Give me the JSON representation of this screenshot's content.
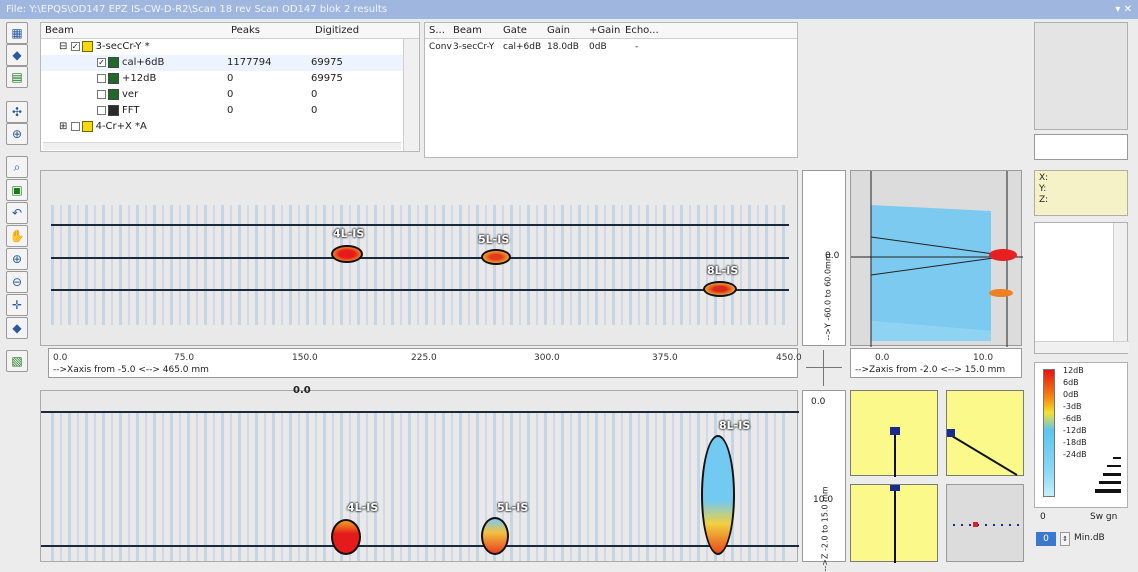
{
  "title": "File: Y:\\EPQS\\OD147 EPZ IS-CW-D-R2\\Scan 18 rev Scan OD147 blok 2 results",
  "window_controls": "▾ ✕",
  "beam_tree": {
    "headers": [
      "Beam",
      "Peaks",
      "Digitized"
    ],
    "rows": [
      {
        "label": "3-secCr-Y *",
        "peaks": "",
        "digitized": ""
      },
      {
        "label": "cal+6dB",
        "peaks": "1177794",
        "digitized": "69975"
      },
      {
        "label": "+12dB",
        "peaks": "0",
        "digitized": "69975"
      },
      {
        "label": "ver",
        "peaks": "0",
        "digitized": "0"
      },
      {
        "label": "FFT",
        "peaks": "0",
        "digitized": "0"
      },
      {
        "label": "4-Cr+X *A",
        "peaks": "",
        "digitized": ""
      }
    ]
  },
  "gate_table": {
    "headers": [
      "S...",
      "Beam",
      "Gate",
      "Gain",
      "+Gain",
      "Echo..."
    ],
    "row": [
      "Conv",
      "3-secCr-Y",
      "cal+6dB",
      "18.0dB",
      "0dB",
      "-"
    ]
  },
  "top_scan": {
    "defects": [
      "4L-IS",
      "5L-IS",
      "8L-IS"
    ]
  },
  "x_axis": {
    "ticks": [
      "0.0",
      "75.0",
      "150.0",
      "225.0",
      "300.0",
      "375.0",
      "450.0"
    ],
    "caption": "-->Xaxis  from -5.0 <--> 465.0 mm"
  },
  "y_axis": {
    "caption": "-->Y -60.0 to 60.0mm",
    "mid": "0.0"
  },
  "z_axis": {
    "ticks": [
      "0.0",
      "10.0"
    ],
    "caption": "-->Zaxis  from -2.0 <--> 15.0 mm"
  },
  "bottom_scan": {
    "defects": [
      "4L-IS",
      "5L-IS",
      "8L-IS"
    ],
    "top_mark": "0.0"
  },
  "bottom_side_ruler": {
    "top": "0.0",
    "mid": "10.0",
    "caption": "-->Z -2.0 to 15.0 mm"
  },
  "coords": {
    "x": "X:",
    "y": "Y:",
    "z": "Z:"
  },
  "color_scale": {
    "labels": [
      "12dB",
      "6dB",
      "0dB",
      "-3dB",
      "-6dB",
      "-12dB",
      "-18dB",
      "-24dB"
    ]
  },
  "bottom_controls": {
    "left_value": "0",
    "right_label": "Sw gn",
    "spin_value": "0",
    "min_label": "Min.dB"
  },
  "colors": {
    "titlebar": "#9fb7df",
    "scan_blue": "#5fc6ee",
    "yellow": "#fbf98a"
  }
}
